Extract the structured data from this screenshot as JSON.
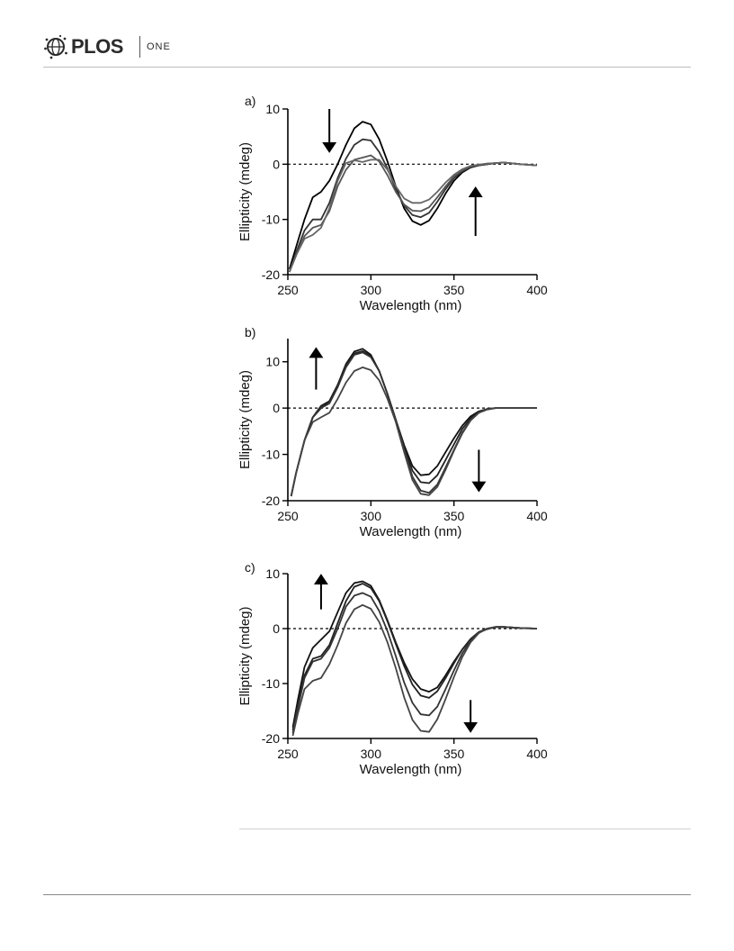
{
  "header": {
    "logo_text": "PLOS",
    "journal": "ONE"
  },
  "chart_data": [
    {
      "type": "line",
      "panel_label": "a)",
      "xlabel": "Wavelength (nm)",
      "ylabel": "Ellipticity (mdeg)",
      "xlim": [
        250,
        400
      ],
      "ylim": [
        -20,
        10
      ],
      "xticks": [
        250,
        300,
        350,
        400
      ],
      "yticks": [
        -20,
        -10,
        0,
        10
      ],
      "zero_line": "dashed",
      "grid": false,
      "arrows": [
        {
          "direction": "down",
          "x": 275,
          "y_from": 10,
          "y_to": 3
        },
        {
          "direction": "up",
          "x": 363,
          "y_from": -13,
          "y_to": -5
        }
      ],
      "series": [
        {
          "color": "#000000",
          "x": [
            251,
            255,
            260,
            265,
            270,
            275,
            280,
            285,
            290,
            295,
            300,
            305,
            310,
            315,
            320,
            325,
            330,
            335,
            340,
            345,
            350,
            355,
            360,
            365,
            370,
            375,
            380,
            390,
            400
          ],
          "y": [
            -19,
            -15,
            -10,
            -6,
            -5,
            -3,
            0,
            3.5,
            6.5,
            7.7,
            7.2,
            4.5,
            0.5,
            -4,
            -8,
            -10.3,
            -11,
            -10.2,
            -8,
            -5.3,
            -3,
            -1.5,
            -0.6,
            -0.2,
            0,
            0.2,
            0.3,
            0,
            -0.2
          ]
        },
        {
          "color": "#333333",
          "x": [
            251,
            255,
            260,
            265,
            270,
            275,
            280,
            285,
            290,
            295,
            300,
            305,
            310,
            315,
            320,
            325,
            330,
            335,
            340,
            345,
            350,
            355,
            360,
            365,
            370,
            375,
            380,
            390,
            400
          ],
          "y": [
            -19.5,
            -16,
            -12,
            -10,
            -10,
            -7,
            -2.5,
            1,
            3.5,
            4.5,
            4.3,
            2.2,
            -0.8,
            -4.5,
            -7.5,
            -9.2,
            -9.6,
            -8.8,
            -6.8,
            -4.5,
            -2.5,
            -1.3,
            -0.5,
            -0.2,
            0,
            0.2,
            0.3,
            0,
            -0.2
          ]
        },
        {
          "color": "#555555",
          "x": [
            251,
            255,
            260,
            265,
            270,
            275,
            280,
            285,
            290,
            295,
            300,
            305,
            310,
            315,
            320,
            325,
            330,
            335,
            340,
            345,
            350,
            355,
            360,
            365,
            370,
            375,
            380,
            390,
            400
          ],
          "y": [
            -19.5,
            -16.5,
            -13,
            -11.5,
            -11,
            -8.5,
            -4,
            -1,
            0.8,
            1.2,
            1.6,
            0.5,
            -2,
            -5,
            -7.3,
            -8.4,
            -8.5,
            -7.8,
            -6,
            -4,
            -2.2,
            -1.1,
            -0.4,
            -0.1,
            0.1,
            0.2,
            0.3,
            0,
            -0.2
          ]
        },
        {
          "color": "#666666",
          "x": [
            251,
            255,
            260,
            265,
            270,
            275,
            280,
            285,
            290,
            295,
            300,
            305,
            310,
            315,
            320,
            325,
            330,
            335,
            340,
            345,
            350,
            355,
            360,
            365,
            370,
            375,
            380,
            390,
            400
          ],
          "y": [
            -19.5,
            -16.5,
            -13.5,
            -12.8,
            -11.5,
            -8,
            -3,
            0.2,
            0.7,
            0.4,
            0.8,
            0.8,
            -1,
            -4,
            -6.2,
            -7,
            -7,
            -6.4,
            -5,
            -3.3,
            -1.9,
            -0.9,
            -0.3,
            -0.1,
            0.1,
            0.2,
            0.3,
            0,
            -0.2
          ]
        }
      ]
    },
    {
      "type": "line",
      "panel_label": "b)",
      "xlabel": "Wavelength (nm)",
      "ylabel": "Ellipticity (mdeg)",
      "xlim": [
        250,
        400
      ],
      "ylim": [
        -20,
        15
      ],
      "xticks": [
        250,
        300,
        350,
        400
      ],
      "yticks": [
        -20,
        -10,
        0,
        10
      ],
      "zero_line": "dashed",
      "grid": false,
      "arrows": [
        {
          "direction": "up",
          "x": 267,
          "y_from": 4,
          "y_to": 12
        },
        {
          "direction": "down",
          "x": 365,
          "y_from": -9,
          "y_to": -17
        }
      ],
      "series": [
        {
          "color": "#111111",
          "x": [
            252,
            255,
            260,
            265,
            270,
            275,
            280,
            285,
            290,
            295,
            300,
            305,
            310,
            315,
            320,
            325,
            330,
            335,
            340,
            345,
            350,
            355,
            360,
            365,
            370,
            375,
            380,
            390,
            400
          ],
          "y": [
            -19,
            -14,
            -7,
            -2,
            0,
            1.5,
            5,
            9.5,
            12.2,
            12.8,
            11.5,
            8,
            3,
            -2.5,
            -8,
            -12.5,
            -14.5,
            -14.3,
            -12.5,
            -9.5,
            -6.5,
            -3.8,
            -1.8,
            -0.7,
            -0.2,
            0,
            0,
            0,
            0
          ]
        },
        {
          "color": "#222222",
          "x": [
            252,
            255,
            260,
            265,
            270,
            275,
            280,
            285,
            290,
            295,
            300,
            305,
            310,
            315,
            320,
            325,
            330,
            335,
            340,
            345,
            350,
            355,
            360,
            365,
            370,
            375,
            380,
            390,
            400
          ],
          "y": [
            -19,
            -14,
            -7,
            -2,
            0.5,
            1.5,
            5,
            9.2,
            11.8,
            12.3,
            11.2,
            8,
            3,
            -2.5,
            -8.5,
            -13.5,
            -16,
            -16.2,
            -14.5,
            -11.2,
            -7.8,
            -4.5,
            -2.2,
            -0.8,
            -0.2,
            0,
            0,
            0,
            0
          ]
        },
        {
          "color": "#333333",
          "x": [
            252,
            255,
            260,
            265,
            270,
            275,
            280,
            285,
            290,
            295,
            300,
            305,
            310,
            315,
            320,
            325,
            330,
            335,
            340,
            345,
            350,
            355,
            360,
            365,
            370,
            375,
            380,
            390,
            400
          ],
          "y": [
            -19,
            -14,
            -7,
            -2,
            0,
            1,
            4.5,
            8.8,
            11.5,
            12,
            11,
            8,
            3,
            -2.5,
            -9,
            -14.8,
            -17.8,
            -18.3,
            -16.5,
            -12.8,
            -9,
            -5.3,
            -2.6,
            -1,
            -0.3,
            0,
            0,
            0,
            0
          ]
        },
        {
          "color": "#444444",
          "x": [
            252,
            255,
            260,
            265,
            270,
            275,
            280,
            285,
            290,
            295,
            300,
            305,
            310,
            315,
            320,
            325,
            330,
            335,
            340,
            345,
            350,
            355,
            360,
            365,
            370,
            375,
            380,
            390,
            400
          ],
          "y": [
            -19,
            -14,
            -7,
            -3,
            -2,
            -1,
            2,
            5.5,
            8,
            8.8,
            8.2,
            6,
            2,
            -3,
            -9.5,
            -15.5,
            -18.5,
            -18.8,
            -17,
            -13.3,
            -9.2,
            -5.5,
            -2.7,
            -1,
            -0.3,
            0,
            0,
            0,
            0
          ]
        }
      ]
    },
    {
      "type": "line",
      "panel_label": "c)",
      "xlabel": "Wavelength (nm)",
      "ylabel": "Ellipticity (mdeg)",
      "xlim": [
        250,
        400
      ],
      "ylim": [
        -20,
        10
      ],
      "xticks": [
        250,
        300,
        350,
        400
      ],
      "yticks": [
        -20,
        -10,
        0,
        10
      ],
      "zero_line": "dashed",
      "grid": false,
      "arrows": [
        {
          "direction": "up",
          "x": 270,
          "y_from": 3.5,
          "y_to": 9
        },
        {
          "direction": "down",
          "x": 360,
          "y_from": -13,
          "y_to": -18
        }
      ],
      "series": [
        {
          "color": "#111111",
          "x": [
            253,
            256,
            260,
            265,
            270,
            275,
            280,
            285,
            290,
            295,
            300,
            305,
            310,
            315,
            320,
            325,
            330,
            335,
            340,
            345,
            350,
            355,
            360,
            365,
            370,
            375,
            380,
            390,
            400
          ],
          "y": [
            -18,
            -13,
            -7,
            -3.5,
            -2,
            -0.5,
            3,
            6.5,
            8.3,
            8.6,
            7.8,
            5.2,
            1.5,
            -2.5,
            -6.2,
            -9.2,
            -11,
            -11.5,
            -10.7,
            -8.5,
            -6,
            -3.8,
            -2,
            -0.7,
            -0.1,
            0.3,
            0.3,
            0.1,
            0
          ]
        },
        {
          "color": "#222222",
          "x": [
            253,
            256,
            260,
            265,
            270,
            275,
            280,
            285,
            290,
            295,
            300,
            305,
            310,
            315,
            320,
            325,
            330,
            335,
            340,
            345,
            350,
            355,
            360,
            365,
            370,
            375,
            380,
            390,
            400
          ],
          "y": [
            -18.5,
            -14,
            -8.5,
            -5.5,
            -5,
            -3,
            1,
            5,
            7.6,
            8.2,
            7.4,
            5,
            1.3,
            -2.8,
            -6.8,
            -10.2,
            -12.2,
            -12.6,
            -11.4,
            -9,
            -6.3,
            -3.8,
            -1.9,
            -0.6,
            0,
            0.3,
            0.3,
            0.1,
            0
          ]
        },
        {
          "color": "#333333",
          "x": [
            253,
            256,
            260,
            265,
            270,
            275,
            280,
            285,
            290,
            295,
            300,
            305,
            310,
            315,
            320,
            325,
            330,
            335,
            340,
            345,
            350,
            355,
            360,
            365,
            370,
            375,
            380,
            390,
            400
          ],
          "y": [
            -19,
            -14.5,
            -9,
            -6,
            -5.5,
            -3.5,
            0,
            4,
            6,
            6.5,
            5.8,
            3.2,
            -0.5,
            -5,
            -9.8,
            -13.5,
            -15.6,
            -15.8,
            -14.2,
            -11,
            -7.6,
            -4.5,
            -2.2,
            -0.7,
            0,
            0.3,
            0.3,
            0.1,
            0
          ]
        },
        {
          "color": "#444444",
          "x": [
            253,
            256,
            260,
            265,
            270,
            275,
            280,
            285,
            290,
            295,
            300,
            305,
            310,
            315,
            320,
            325,
            330,
            335,
            340,
            345,
            350,
            355,
            360,
            365,
            370,
            375,
            380,
            390,
            400
          ],
          "y": [
            -19.5,
            -15.5,
            -11,
            -9.5,
            -9,
            -6.5,
            -3,
            1,
            3.5,
            4.3,
            3.6,
            1.2,
            -2.5,
            -7.2,
            -12.5,
            -16.6,
            -18.6,
            -18.8,
            -16.5,
            -12.8,
            -8.8,
            -5.2,
            -2.5,
            -0.8,
            0,
            0.3,
            0.3,
            0.1,
            0
          ]
        }
      ]
    }
  ]
}
